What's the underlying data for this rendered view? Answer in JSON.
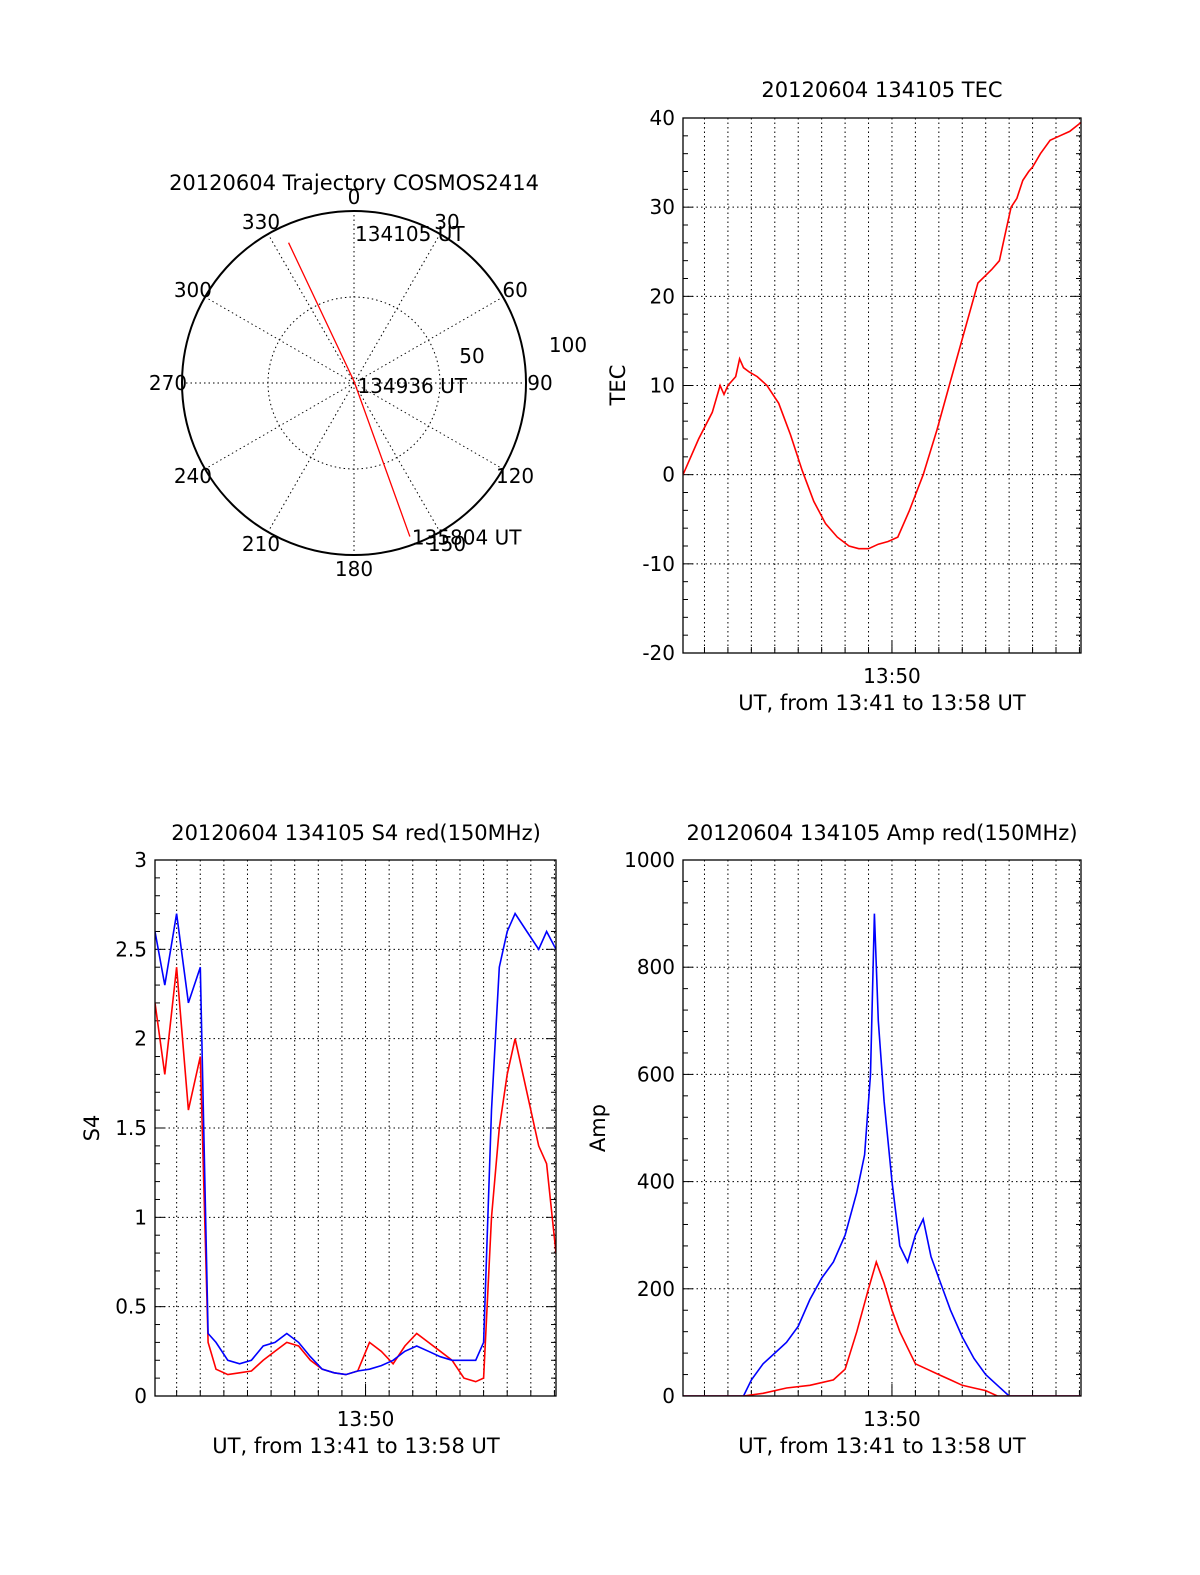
{
  "chart_data": [
    {
      "type": "polar",
      "title": "20120604 Trajectory COSMOS2414",
      "rlim": [
        0,
        100
      ],
      "ring_values": [
        50,
        100
      ],
      "ring_labels": [
        "50",
        "100"
      ],
      "angle_ticks": [
        0,
        30,
        60,
        90,
        120,
        150,
        180,
        210,
        240,
        270,
        300,
        330
      ],
      "angle_labels": [
        "0",
        "30",
        "60",
        "90",
        "120",
        "150",
        "180",
        "210",
        "240",
        "270",
        "300",
        "330"
      ],
      "trajectory": {
        "color": "#ff0000",
        "points": [
          {
            "az": 335,
            "r": 90
          },
          {
            "az": 0,
            "r": 1
          },
          {
            "az": 160,
            "r": 95
          }
        ]
      },
      "annotations": [
        {
          "text": "134105 UT",
          "az": 0,
          "r": 90
        },
        {
          "text": "134936 UT",
          "az": 90,
          "r": 2
        },
        {
          "text": "135804 UT",
          "az": 160,
          "r": 95
        }
      ]
    },
    {
      "type": "line",
      "title": "20120604 134105 TEC",
      "ylabel": "TEC",
      "xlabel": "UT, from 13:41 to 13:58 UT",
      "xlim": [
        "13:41:05",
        "13:58:04"
      ],
      "xtick_labels": [
        {
          "t": "13:50",
          "label": "13:50"
        }
      ],
      "ylim": [
        -20,
        40
      ],
      "yticks": [
        -20,
        -10,
        0,
        10,
        20,
        30,
        40
      ],
      "grid": true,
      "series": [
        {
          "color": "#ff0000",
          "t": [
            "13:41:05",
            "13:41:45",
            "13:42:20",
            "13:42:40",
            "13:42:50",
            "13:43:00",
            "13:43:20",
            "13:43:30",
            "13:43:40",
            "13:43:55",
            "13:44:15",
            "13:44:40",
            "13:45:10",
            "13:45:40",
            "13:46:10",
            "13:46:40",
            "13:47:10",
            "13:47:40",
            "13:48:10",
            "13:48:35",
            "13:49:00",
            "13:49:25",
            "13:49:50",
            "13:50:15",
            "13:50:45",
            "13:51:20",
            "13:51:55",
            "13:52:30",
            "13:53:05",
            "13:53:40",
            "13:54:15",
            "13:54:35",
            "13:54:50",
            "13:55:05",
            "13:55:20",
            "13:55:35",
            "13:55:50",
            "13:56:00",
            "13:56:20",
            "13:56:45",
            "13:57:10",
            "13:57:35",
            "13:58:04"
          ],
          "values": [
            0,
            4,
            7,
            10,
            9,
            10,
            11,
            13,
            12,
            11.5,
            11,
            10,
            8,
            4.5,
            0.5,
            -3,
            -5.5,
            -7,
            -8,
            -8.3,
            -8.3,
            -7.8,
            -7.5,
            -7,
            -4,
            0,
            5,
            10.5,
            16,
            21.5,
            23,
            24,
            27,
            30,
            31,
            33,
            34,
            34.5,
            36,
            37.5,
            38,
            38.5,
            39.5
          ]
        }
      ]
    },
    {
      "type": "line",
      "title": "20120604 134105 S4 red(150MHz)",
      "ylabel": "S4",
      "xlabel": "UT, from 13:41 to 13:58 UT",
      "xlim": [
        "13:41:05",
        "13:58:04"
      ],
      "xtick_labels": [
        {
          "t": "13:50",
          "label": "13:50"
        }
      ],
      "ylim": [
        0,
        3
      ],
      "yticks": [
        0,
        0.5,
        1,
        1.5,
        2,
        2.5,
        3
      ],
      "ytick_labels": [
        "0",
        "0.5",
        "1",
        "1.5",
        "2",
        "2.5",
        "3"
      ],
      "grid": true,
      "series": [
        {
          "color": "#ff0000",
          "t": [
            "13:41:05",
            "13:41:30",
            "13:42:00",
            "13:42:30",
            "13:43:00",
            "13:43:20",
            "13:43:40",
            "13:44:10",
            "13:44:40",
            "13:45:10",
            "13:45:40",
            "13:46:10",
            "13:46:40",
            "13:47:10",
            "13:47:40",
            "13:48:10",
            "13:48:40",
            "13:49:10",
            "13:49:40",
            "13:50:10",
            "13:50:40",
            "13:51:10",
            "13:51:40",
            "13:52:10",
            "13:52:40",
            "13:53:10",
            "13:53:40",
            "13:54:10",
            "13:54:40",
            "13:55:00",
            "13:55:20",
            "13:55:40",
            "13:56:00",
            "13:56:20",
            "13:56:50",
            "13:57:20",
            "13:57:40",
            "13:58:04"
          ],
          "values": [
            2.2,
            1.8,
            2.4,
            1.6,
            1.9,
            0.3,
            0.15,
            0.12,
            0.13,
            0.14,
            0.2,
            0.25,
            0.3,
            0.28,
            0.2,
            0.15,
            0.13,
            0.12,
            0.14,
            0.3,
            0.25,
            0.18,
            0.28,
            0.35,
            0.3,
            0.25,
            0.2,
            0.1,
            0.08,
            0.1,
            1.0,
            1.5,
            1.8,
            2.0,
            1.7,
            1.4,
            1.3,
            0.8
          ]
        },
        {
          "color": "#0000ff",
          "t": [
            "13:41:05",
            "13:41:30",
            "13:42:00",
            "13:42:30",
            "13:43:00",
            "13:43:20",
            "13:43:40",
            "13:44:10",
            "13:44:40",
            "13:45:10",
            "13:45:40",
            "13:46:10",
            "13:46:40",
            "13:47:10",
            "13:47:40",
            "13:48:10",
            "13:48:40",
            "13:49:10",
            "13:49:40",
            "13:50:10",
            "13:50:40",
            "13:51:10",
            "13:51:40",
            "13:52:10",
            "13:52:40",
            "13:53:10",
            "13:53:40",
            "13:54:10",
            "13:54:40",
            "13:55:00",
            "13:55:20",
            "13:55:40",
            "13:56:00",
            "13:56:20",
            "13:56:50",
            "13:57:20",
            "13:57:40",
            "13:58:04"
          ],
          "values": [
            2.6,
            2.3,
            2.7,
            2.2,
            2.4,
            0.35,
            0.3,
            0.2,
            0.18,
            0.2,
            0.28,
            0.3,
            0.35,
            0.3,
            0.22,
            0.15,
            0.13,
            0.12,
            0.14,
            0.15,
            0.17,
            0.2,
            0.25,
            0.28,
            0.25,
            0.22,
            0.2,
            0.2,
            0.2,
            0.3,
            1.6,
            2.4,
            2.6,
            2.7,
            2.6,
            2.5,
            2.6,
            2.5
          ]
        }
      ]
    },
    {
      "type": "line",
      "title": "20120604 134105 Amp red(150MHz)",
      "ylabel": "Amp",
      "xlabel": "UT, from 13:41 to 13:58 UT",
      "xlim": [
        "13:41:05",
        "13:58:04"
      ],
      "xtick_labels": [
        {
          "t": "13:50",
          "label": "13:50"
        }
      ],
      "ylim": [
        0,
        1000
      ],
      "yticks": [
        0,
        200,
        400,
        600,
        800,
        1000
      ],
      "grid": true,
      "series": [
        {
          "color": "#0000ff",
          "t": [
            "13:41:05",
            "13:43:40",
            "13:44:00",
            "13:44:30",
            "13:45:00",
            "13:45:30",
            "13:46:00",
            "13:46:30",
            "13:47:00",
            "13:47:30",
            "13:48:00",
            "13:48:30",
            "13:48:50",
            "13:49:05",
            "13:49:15",
            "13:49:25",
            "13:49:40",
            "13:50:00",
            "13:50:20",
            "13:50:40",
            "13:51:00",
            "13:51:20",
            "13:51:40",
            "13:52:00",
            "13:52:30",
            "13:53:00",
            "13:53:30",
            "13:54:00",
            "13:54:30",
            "13:55:00",
            "13:56:00",
            "13:57:00",
            "13:58:04"
          ],
          "values": [
            0,
            0,
            30,
            60,
            80,
            100,
            130,
            180,
            220,
            250,
            300,
            380,
            450,
            600,
            900,
            700,
            550,
            400,
            280,
            250,
            300,
            330,
            260,
            220,
            160,
            110,
            70,
            40,
            20,
            0,
            0,
            0,
            0
          ]
        },
        {
          "color": "#ff0000",
          "t": [
            "13:41:05",
            "13:43:40",
            "13:44:30",
            "13:45:30",
            "13:46:30",
            "13:47:30",
            "13:48:00",
            "13:48:30",
            "13:49:00",
            "13:49:20",
            "13:49:40",
            "13:50:00",
            "13:50:20",
            "13:50:40",
            "13:51:00",
            "13:51:30",
            "13:52:00",
            "13:52:30",
            "13:53:00",
            "13:53:30",
            "13:54:00",
            "13:54:30",
            "13:58:04"
          ],
          "values": [
            0,
            0,
            5,
            15,
            20,
            30,
            50,
            120,
            200,
            250,
            210,
            160,
            120,
            90,
            60,
            50,
            40,
            30,
            20,
            15,
            10,
            0,
            0
          ]
        }
      ]
    }
  ]
}
